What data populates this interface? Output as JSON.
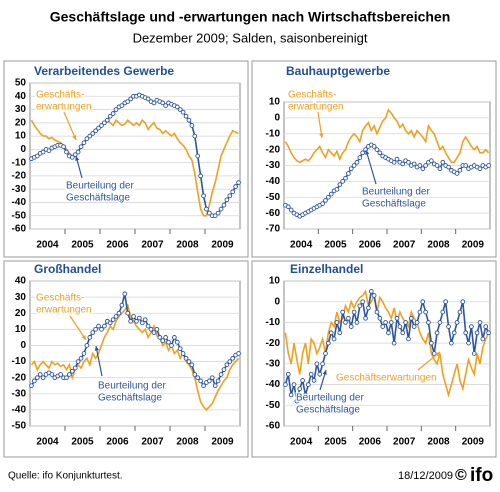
{
  "title": "Geschäftslage und -erwartungen nach Wirtschaftsbereichen",
  "subtitle": "Dezember 2009; Salden, saisonbereinigt",
  "source": "Quelle: ifo Konjunkturtest.",
  "date": "18/12/2009",
  "copyright": "©",
  "logo": "ifo",
  "chart_data": [
    {
      "type": "line",
      "title": "Verarbeitendes Gewerbe",
      "ylim": [
        -60,
        50
      ],
      "yticks": [
        -60,
        -50,
        -40,
        -30,
        -20,
        -10,
        0,
        10,
        20,
        30,
        40,
        50
      ],
      "grid": true,
      "categories": [
        null,
        null,
        null,
        null,
        null,
        "2004",
        null,
        null,
        null,
        null,
        null,
        null,
        null,
        null,
        null,
        null,
        null,
        "2005",
        null,
        null,
        null,
        null,
        null,
        null,
        null,
        null,
        null,
        null,
        null,
        "2006",
        null,
        null,
        null,
        null,
        null,
        null,
        null,
        null,
        null,
        null,
        null,
        "2007",
        null,
        null,
        null,
        null,
        null,
        null,
        null,
        null,
        null,
        null,
        null,
        "2008",
        null,
        null,
        null,
        null,
        null,
        null,
        null,
        null,
        null,
        null,
        null,
        "2009",
        null,
        null,
        null,
        null,
        null,
        null
      ],
      "series": [
        {
          "color": "#f0a020",
          "values": [
            22,
            18,
            15,
            12,
            10,
            10,
            8,
            9,
            7,
            6,
            5,
            3,
            0,
            -3,
            -5,
            -4,
            -2,
            2,
            5,
            8,
            10,
            12,
            14,
            15,
            18,
            20,
            22,
            20,
            18,
            22,
            20,
            18,
            19,
            22,
            20,
            18,
            20,
            18,
            22,
            20,
            15,
            18,
            20,
            16,
            15,
            12,
            14,
            12,
            10,
            12,
            8,
            5,
            3,
            0,
            -5,
            -8,
            -18,
            -32,
            -45,
            -50,
            -50,
            -42,
            -32,
            -25,
            -15,
            -5,
            0,
            5,
            10,
            14,
            13,
            12
          ]
        },
        {
          "color": "#2b55a0",
          "marker": "circle",
          "values": [
            -7,
            -6,
            -5,
            -3,
            -2,
            0,
            -1,
            1,
            2,
            3,
            3,
            2,
            -2,
            -5,
            -6,
            -4,
            -2,
            2,
            5,
            8,
            10,
            12,
            14,
            16,
            18,
            20,
            22,
            25,
            27,
            30,
            32,
            33,
            35,
            36,
            38,
            40,
            40,
            41,
            40,
            39,
            38,
            36,
            35,
            37,
            36,
            35,
            33,
            35,
            34,
            33,
            32,
            30,
            28,
            25,
            22,
            18,
            10,
            -5,
            -20,
            -35,
            -45,
            -48,
            -50,
            -50,
            -48,
            -45,
            -42,
            -38,
            -35,
            -32,
            -28,
            -25
          ]
        }
      ],
      "annotations": [
        {
          "lines": [
            "Geschäfts-",
            "erwartungen"
          ],
          "color": "#f0a020"
        },
        {
          "lines": [
            "Beurteilung der",
            "Geschäftslage"
          ],
          "color": "#2b55a0"
        }
      ]
    },
    {
      "type": "line",
      "title": "Bauhauptgewerbe",
      "ylim": [
        -70,
        10
      ],
      "yticks": [
        -70,
        -60,
        -50,
        -40,
        -30,
        -20,
        -10,
        0,
        10
      ],
      "grid": true,
      "categories": [
        null,
        null,
        null,
        null,
        null,
        "2004",
        null,
        null,
        null,
        null,
        null,
        null,
        null,
        null,
        null,
        null,
        null,
        "2005",
        null,
        null,
        null,
        null,
        null,
        null,
        null,
        null,
        null,
        null,
        null,
        "2006",
        null,
        null,
        null,
        null,
        null,
        null,
        null,
        null,
        null,
        null,
        null,
        "2007",
        null,
        null,
        null,
        null,
        null,
        null,
        null,
        null,
        null,
        null,
        null,
        "2008",
        null,
        null,
        null,
        null,
        null,
        null,
        null,
        null,
        null,
        null,
        null,
        "2009",
        null,
        null,
        null,
        null,
        null,
        null
      ],
      "series": [
        {
          "color": "#f0a020",
          "values": [
            -15,
            -18,
            -22,
            -25,
            -27,
            -28,
            -27,
            -26,
            -27,
            -25,
            -22,
            -20,
            -18,
            -22,
            -25,
            -20,
            -22,
            -24,
            -21,
            -26,
            -22,
            -20,
            -15,
            -12,
            -10,
            -12,
            -15,
            -8,
            -5,
            -3,
            -8,
            -5,
            -10,
            -6,
            -2,
            0,
            5,
            3,
            0,
            -2,
            -6,
            -4,
            -8,
            -10,
            -8,
            -12,
            -8,
            -10,
            -12,
            -15,
            -5,
            -8,
            -10,
            -15,
            -20,
            -18,
            -22,
            -25,
            -28,
            -28,
            -25,
            -22,
            -15,
            -12,
            -15,
            -18,
            -20,
            -18,
            -22,
            -22,
            -20,
            -22
          ]
        },
        {
          "color": "#2b55a0",
          "marker": "circle",
          "values": [
            -55,
            -56,
            -58,
            -60,
            -61,
            -62,
            -61,
            -60,
            -59,
            -58,
            -57,
            -56,
            -55,
            -54,
            -52,
            -50,
            -48,
            -46,
            -45,
            -42,
            -40,
            -38,
            -35,
            -32,
            -30,
            -28,
            -25,
            -22,
            -20,
            -18,
            -17,
            -18,
            -20,
            -22,
            -24,
            -25,
            -26,
            -27,
            -28,
            -26,
            -28,
            -29,
            -27,
            -28,
            -30,
            -29,
            -31,
            -30,
            -32,
            -30,
            -28,
            -27,
            -29,
            -30,
            -32,
            -28,
            -30,
            -31,
            -33,
            -34,
            -35,
            -33,
            -30,
            -30,
            -32,
            -31,
            -30,
            -31,
            -32,
            -30,
            -31,
            -30
          ]
        }
      ],
      "annotations": [
        {
          "lines": [
            "Geschäfts-",
            "erwartungen"
          ],
          "color": "#f0a020"
        },
        {
          "lines": [
            "Beurteilung der",
            "Geschäftslage"
          ],
          "color": "#2b55a0"
        }
      ]
    },
    {
      "type": "line",
      "title": "Großhandel",
      "ylim": [
        -50,
        40
      ],
      "yticks": [
        -50,
        -40,
        -30,
        -20,
        -10,
        0,
        10,
        20,
        30,
        40
      ],
      "grid": true,
      "categories": [
        null,
        null,
        null,
        null,
        null,
        "2004",
        null,
        null,
        null,
        null,
        null,
        null,
        null,
        null,
        null,
        null,
        null,
        "2005",
        null,
        null,
        null,
        null,
        null,
        null,
        null,
        null,
        null,
        null,
        null,
        "2006",
        null,
        null,
        null,
        null,
        null,
        null,
        null,
        null,
        null,
        null,
        null,
        "2007",
        null,
        null,
        null,
        null,
        null,
        null,
        null,
        null,
        null,
        null,
        null,
        "2008",
        null,
        null,
        null,
        null,
        null,
        null,
        null,
        null,
        null,
        null,
        null,
        "2009",
        null,
        null,
        null,
        null,
        null,
        null
      ],
      "series": [
        {
          "color": "#f0a020",
          "values": [
            -12,
            -10,
            -15,
            -12,
            -10,
            -12,
            -14,
            -10,
            -12,
            -11,
            -13,
            -12,
            -15,
            -12,
            -20,
            -15,
            -12,
            -14,
            -10,
            -8,
            -12,
            -5,
            -8,
            -5,
            0,
            5,
            8,
            12,
            10,
            15,
            18,
            20,
            22,
            25,
            18,
            15,
            12,
            10,
            8,
            10,
            5,
            8,
            12,
            6,
            5,
            0,
            2,
            -3,
            0,
            -5,
            -3,
            -8,
            -5,
            -10,
            -12,
            -15,
            -20,
            -28,
            -35,
            -38,
            -40,
            -38,
            -36,
            -32,
            -28,
            -25,
            -22,
            -20,
            -15,
            -12,
            -10,
            -8
          ]
        },
        {
          "color": "#2b55a0",
          "marker": "circle",
          "values": [
            -25,
            -22,
            -20,
            -18,
            -20,
            -18,
            -17,
            -18,
            -20,
            -19,
            -18,
            -20,
            -20,
            -18,
            -16,
            -14,
            -10,
            -8,
            -5,
            0,
            5,
            8,
            10,
            12,
            10,
            12,
            15,
            14,
            16,
            18,
            20,
            25,
            32,
            20,
            15,
            18,
            15,
            17,
            14,
            16,
            12,
            10,
            8,
            10,
            5,
            3,
            5,
            2,
            0,
            5,
            2,
            -2,
            -5,
            -8,
            -10,
            -12,
            -18,
            -20,
            -22,
            -25,
            -23,
            -22,
            -20,
            -25,
            -22,
            -18,
            -15,
            -12,
            -10,
            -8,
            -6,
            -5
          ]
        }
      ],
      "annotations": [
        {
          "lines": [
            "Geschäfts-",
            "erwartungen"
          ],
          "color": "#f0a020"
        },
        {
          "lines": [
            "Beurteilung der",
            "Geschäftslage"
          ],
          "color": "#2b55a0"
        }
      ]
    },
    {
      "type": "line",
      "title": "Einzelhandel",
      "ylim": [
        -60,
        10
      ],
      "yticks": [
        -60,
        -50,
        -40,
        -30,
        -20,
        -10,
        0,
        10
      ],
      "grid": true,
      "categories": [
        null,
        null,
        null,
        null,
        null,
        "2004",
        null,
        null,
        null,
        null,
        null,
        null,
        null,
        null,
        null,
        null,
        null,
        "2005",
        null,
        null,
        null,
        null,
        null,
        null,
        null,
        null,
        null,
        null,
        null,
        "2006",
        null,
        null,
        null,
        null,
        null,
        null,
        null,
        null,
        null,
        null,
        null,
        "2007",
        null,
        null,
        null,
        null,
        null,
        null,
        null,
        null,
        null,
        null,
        null,
        "2008",
        null,
        null,
        null,
        null,
        null,
        null,
        null,
        null,
        null,
        null,
        null,
        "2009",
        null,
        null,
        null,
        null,
        null,
        null
      ],
      "series": [
        {
          "color": "#f0a020",
          "values": [
            -15,
            -25,
            -30,
            -20,
            -28,
            -35,
            -25,
            -20,
            -30,
            -18,
            -20,
            -25,
            -22,
            -18,
            -25,
            -15,
            -10,
            -12,
            -5,
            -10,
            -8,
            -2,
            -5,
            0,
            -3,
            0,
            2,
            3,
            5,
            -2,
            0,
            3,
            -5,
            2,
            0,
            -3,
            -5,
            -8,
            -3,
            -10,
            -5,
            -8,
            -10,
            -12,
            -5,
            -8,
            -10,
            -15,
            -18,
            -20,
            -15,
            -25,
            -28,
            -30,
            -25,
            -35,
            -40,
            -45,
            -40,
            -35,
            -30,
            -38,
            -42,
            -35,
            -28,
            -32,
            -35,
            -25,
            -30,
            -22,
            -18,
            -15
          ]
        },
        {
          "color": "#2b55a0",
          "marker": "circle",
          "values": [
            -40,
            -35,
            -45,
            -40,
            -48,
            -42,
            -38,
            -45,
            -40,
            -35,
            -38,
            -30,
            -35,
            -30,
            -25,
            -20,
            -15,
            -18,
            -10,
            -15,
            -5,
            -10,
            -8,
            -12,
            -5,
            -10,
            -2,
            0,
            -8,
            -3,
            5,
            3,
            -5,
            -8,
            -12,
            -10,
            -15,
            -10,
            -20,
            -8,
            -12,
            -15,
            -10,
            -18,
            -8,
            -12,
            -10,
            -5,
            0,
            -5,
            -10,
            -20,
            -25,
            -15,
            -10,
            -5,
            0,
            -12,
            -20,
            -15,
            -10,
            -5,
            0,
            -15,
            -20,
            -12,
            -25,
            -15,
            -10,
            -18,
            -12,
            -15
          ]
        }
      ],
      "annotations": [
        {
          "lines": [
            "Geschäftserwartungen"
          ],
          "color": "#f0a020"
        },
        {
          "lines": [
            "Beurteilung der",
            "Geschäftslage"
          ],
          "color": "#2b55a0"
        }
      ]
    }
  ]
}
